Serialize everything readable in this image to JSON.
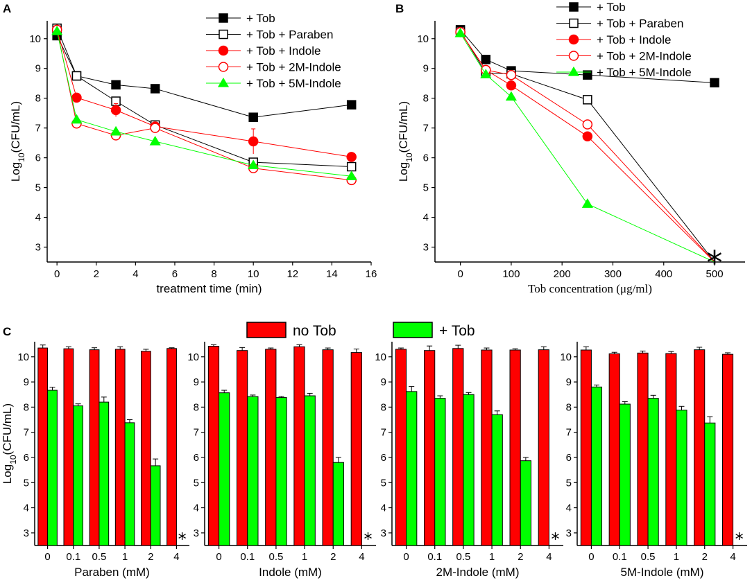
{
  "chart_data": [
    {
      "panel": "A",
      "type": "line",
      "xlabel": "treatment time (min)",
      "ylabel_main": "Log",
      "ylabel_sub": "10",
      "ylabel_rest": "(CFU/mL)",
      "xlim": [
        -0.5,
        16
      ],
      "ylim": [
        2.5,
        10.6
      ],
      "xticks": [
        0,
        2,
        4,
        6,
        8,
        10,
        12,
        14,
        16
      ],
      "yticks": [
        3,
        4,
        5,
        6,
        7,
        8,
        9,
        10
      ],
      "series": [
        {
          "name": "+ Tob",
          "marker": "square-filled",
          "color": "#000000",
          "x": [
            0,
            1,
            3,
            5,
            10,
            15
          ],
          "y": [
            10.1,
            8.75,
            8.45,
            8.32,
            7.36,
            7.78
          ],
          "err": [
            0,
            0,
            0,
            0,
            0,
            0
          ]
        },
        {
          "name": "+ Tob + Paraben",
          "marker": "square-open",
          "color": "#000000",
          "x": [
            0,
            1,
            3,
            5,
            10,
            15
          ],
          "y": [
            10.35,
            8.75,
            7.9,
            7.1,
            5.85,
            5.7
          ],
          "err": [
            0,
            0.12,
            0,
            0,
            0.12,
            0
          ]
        },
        {
          "name": "+ Tob + Indole",
          "marker": "circle-filled",
          "color": "#ff0000",
          "x": [
            0,
            1,
            3,
            5,
            10,
            15
          ],
          "y": [
            10.3,
            8.02,
            7.6,
            7.05,
            6.55,
            6.03
          ],
          "err": [
            0,
            0,
            0.22,
            0,
            0.42,
            0
          ]
        },
        {
          "name": "+ Tob + 2M-Indole",
          "marker": "circle-open",
          "color": "#ff0000",
          "x": [
            0,
            1,
            3,
            5,
            10,
            15
          ],
          "y": [
            10.3,
            7.15,
            6.75,
            7.0,
            5.65,
            5.25
          ],
          "err": [
            0,
            0,
            0.15,
            0,
            0,
            0.1
          ]
        },
        {
          "name": "+ Tob + 5M-Indole",
          "marker": "triangle-filled",
          "color": "#00ff00",
          "x": [
            0,
            1,
            3,
            5,
            10,
            15
          ],
          "y": [
            10.25,
            7.28,
            6.88,
            6.55,
            5.75,
            5.38
          ],
          "err": [
            0,
            0,
            0,
            0,
            0,
            0
          ]
        }
      ]
    },
    {
      "panel": "B",
      "type": "line",
      "xlabel": "Tob concentration (μg/ml)",
      "ylabel_main": "Log",
      "ylabel_sub": "10",
      "ylabel_rest": "(CFU/mL)",
      "xlim": [
        -50,
        560
      ],
      "ylim": [
        2.5,
        10.6
      ],
      "xticks": [
        0,
        100,
        200,
        300,
        400,
        500
      ],
      "yticks": [
        3,
        4,
        5,
        6,
        7,
        8,
        9,
        10
      ],
      "below_detection_marker": "*",
      "series": [
        {
          "name": "+ Tob",
          "marker": "square-filled",
          "color": "#000000",
          "x": [
            0,
            50,
            100,
            250,
            500
          ],
          "y": [
            10.3,
            9.3,
            8.92,
            8.78,
            8.52
          ],
          "err": [
            0,
            0,
            0,
            0,
            0
          ]
        },
        {
          "name": "+ Tob + Paraben",
          "marker": "square-open",
          "color": "#000000",
          "x": [
            0,
            50,
            100,
            250,
            500
          ],
          "y": [
            10.25,
            8.85,
            8.82,
            7.95,
            2.5
          ],
          "err": [
            0,
            0,
            0,
            0,
            0
          ]
        },
        {
          "name": "+ Tob + Indole",
          "marker": "circle-filled",
          "color": "#ff0000",
          "x": [
            0,
            50,
            100,
            250,
            500
          ],
          "y": [
            10.22,
            8.95,
            8.43,
            6.72,
            2.5
          ],
          "err": [
            0,
            0,
            0,
            0,
            0
          ]
        },
        {
          "name": "+ Tob + 2M-Indole",
          "marker": "circle-open",
          "color": "#ff0000",
          "x": [
            0,
            50,
            100,
            250,
            500
          ],
          "y": [
            10.22,
            8.95,
            8.78,
            7.12,
            2.5
          ],
          "err": [
            0,
            0,
            0,
            0,
            0
          ]
        },
        {
          "name": "+ Tob + 5M-Indole",
          "marker": "triangle-filled",
          "color": "#00ff00",
          "x": [
            0,
            50,
            100,
            250,
            500
          ],
          "y": [
            10.18,
            8.8,
            8.05,
            4.45,
            2.5
          ],
          "err": [
            0,
            0,
            0,
            0,
            0
          ]
        }
      ]
    },
    {
      "panel": "C",
      "type": "bar",
      "legend": [
        {
          "name": "no Tob",
          "color": "#ff0000"
        },
        {
          "name": "+ Tob",
          "color": "#00ff00"
        }
      ],
      "ylabel_main": "Log",
      "ylabel_sub": "10",
      "ylabel_rest": "(CFU/mL)",
      "ylim": [
        2.5,
        10.6
      ],
      "yticks": [
        3,
        4,
        5,
        6,
        7,
        8,
        9,
        10
      ],
      "below_detection_marker": "*",
      "subplots": [
        {
          "xlabel": "Paraben (mM)",
          "categories": [
            "0",
            "0.1",
            "0.5",
            "1",
            "2",
            "4"
          ],
          "series": [
            {
              "name": "no Tob",
              "values": [
                10.35,
                10.32,
                10.28,
                10.3,
                10.22,
                10.33
              ],
              "err": [
                0.12,
                0.08,
                0.08,
                0.1,
                0.08,
                0.03
              ]
            },
            {
              "name": "+ Tob",
              "values": [
                8.67,
                8.05,
                8.2,
                7.38,
                5.67,
                null
              ],
              "err": [
                0.12,
                0.08,
                0.2,
                0.12,
                0.27,
                null
              ]
            }
          ]
        },
        {
          "xlabel": "Indole (mM)",
          "categories": [
            "0",
            "0.1",
            "0.5",
            "1",
            "2",
            "4"
          ],
          "series": [
            {
              "name": "no Tob",
              "values": [
                10.42,
                10.25,
                10.3,
                10.4,
                10.28,
                10.17
              ],
              "err": [
                0.06,
                0.12,
                0.05,
                0.08,
                0.07,
                0.14
              ]
            },
            {
              "name": "+ Tob",
              "values": [
                8.57,
                8.42,
                8.38,
                8.45,
                5.8,
                null
              ],
              "err": [
                0.1,
                0.06,
                0.04,
                0.1,
                0.2,
                null
              ]
            }
          ]
        },
        {
          "xlabel": "2M-Indole (mM)",
          "categories": [
            "0",
            "0.1",
            "0.5",
            "1",
            "2",
            "4"
          ],
          "series": [
            {
              "name": "no Tob",
              "values": [
                10.3,
                10.25,
                10.33,
                10.27,
                10.27,
                10.28
              ],
              "err": [
                0.05,
                0.18,
                0.13,
                0.08,
                0.05,
                0.12
              ]
            },
            {
              "name": "+ Tob",
              "values": [
                8.62,
                8.35,
                8.5,
                7.7,
                5.87,
                null
              ],
              "err": [
                0.2,
                0.1,
                0.08,
                0.15,
                0.13,
                null
              ]
            }
          ]
        },
        {
          "xlabel": "5M-Indole (mM)",
          "categories": [
            "0",
            "0.1",
            "0.5",
            "1",
            "2",
            "4"
          ],
          "series": [
            {
              "name": "no Tob",
              "values": [
                10.27,
                10.12,
                10.15,
                10.13,
                10.28,
                10.1
              ],
              "err": [
                0.13,
                0.06,
                0.08,
                0.08,
                0.1,
                0.06
              ]
            },
            {
              "name": "+ Tob",
              "values": [
                8.8,
                8.12,
                8.35,
                7.88,
                7.37,
                null
              ],
              "err": [
                0.08,
                0.1,
                0.12,
                0.15,
                0.25,
                null
              ]
            }
          ]
        }
      ]
    }
  ],
  "panel_labels": [
    "A",
    "B",
    "C"
  ]
}
